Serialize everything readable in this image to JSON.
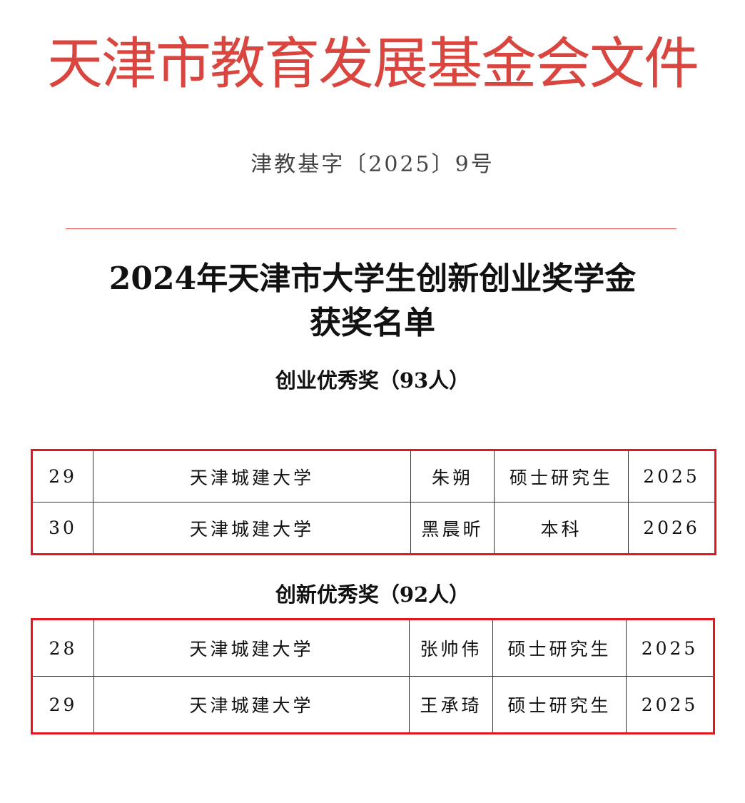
{
  "header": {
    "title": "天津市教育发展基金会文件",
    "doc_number": "津教基字〔2025〕9号"
  },
  "main_title": {
    "line1": "2024年天津市大学生创新创业奖学金",
    "line2": "获奖名单"
  },
  "sections": [
    {
      "heading": "创业优秀奖（93人）",
      "rows": [
        [
          "29",
          "天津城建大学",
          "朱朔",
          "硕士研究生",
          "2025"
        ],
        [
          "30",
          "天津城建大学",
          "黑晨昕",
          "本科",
          "2026"
        ]
      ]
    },
    {
      "heading": "创新优秀奖（92人）",
      "rows": [
        [
          "28",
          "天津城建大学",
          "张帅伟",
          "硕士研究生",
          "2025"
        ],
        [
          "29",
          "天津城建大学",
          "王承琦",
          "硕士研究生",
          "2025"
        ]
      ]
    }
  ],
  "colors": {
    "header_red": "#d9463f",
    "highlight_red": "#e8141c"
  }
}
